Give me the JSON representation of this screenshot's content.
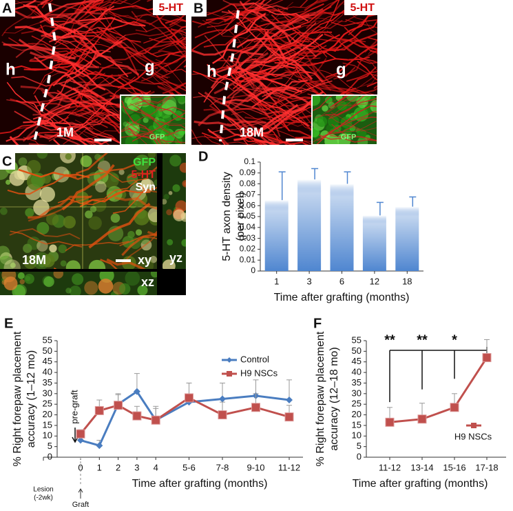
{
  "images": [
    {
      "label": "A",
      "stain": "5-HT",
      "regions": [
        "h",
        "g"
      ],
      "time": "1M",
      "inset": "GFP"
    },
    {
      "label": "B",
      "stain": "5-HT",
      "regions": [
        "h",
        "g"
      ],
      "time": "18M",
      "inset": "GFP"
    },
    {
      "label": "C",
      "stains": [
        "GFP",
        "5-HT",
        "Syn"
      ],
      "time": "18M",
      "views": [
        "xy",
        "yz",
        "xz"
      ]
    }
  ],
  "chart_data": [
    {
      "type": "bar",
      "label": "D",
      "ylabel": [
        "5-HT axon density",
        "(per pixel)"
      ],
      "xlabel": "Time after grafting (months)",
      "categories": [
        "1",
        "3",
        "6",
        "12",
        "18"
      ],
      "values": [
        0.065,
        0.084,
        0.08,
        0.051,
        0.059
      ],
      "errors": [
        0.026,
        0.01,
        0.011,
        0.012,
        0.009
      ],
      "color": "#4f86d0",
      "ylim": [
        0,
        0.1
      ],
      "yticks": [
        0,
        0.01,
        0.02,
        0.03,
        0.04,
        0.05,
        0.06,
        0.07,
        0.08,
        0.09,
        0.1
      ]
    },
    {
      "type": "line",
      "label": "E",
      "ylabel": [
        "% Right forepaw placement",
        "accuracy (1–12 mo)"
      ],
      "xlabel": "Time after grafting (months)",
      "categories": [
        "0",
        "1",
        "2",
        "3",
        "4",
        "5-6",
        "7-8",
        "9-10",
        "11-12"
      ],
      "series": [
        {
          "name": "Control",
          "color": "#4a7dc0",
          "marker": "diamond",
          "values": [
            8,
            5.5,
            25,
            31,
            17.5,
            26,
            27.5,
            29,
            27
          ],
          "errors": [
            null,
            2.5,
            5,
            8.5,
            6.5,
            9,
            7.5,
            7.5,
            9.5
          ]
        },
        {
          "name": "H9 NSCs",
          "color": "#c0504d",
          "marker": "square",
          "values": [
            11,
            22,
            24.5,
            19.5,
            17.5,
            28,
            20,
            23.5,
            19
          ],
          "errors": [
            2,
            5,
            5,
            4.5,
            5.5,
            7,
            6,
            6.5,
            5.5
          ]
        }
      ],
      "annotations": {
        "pre_graft": "pre-graft",
        "lesion": [
          "Lesion",
          "(-2wk)"
        ],
        "graft": "Graft"
      },
      "ylim": [
        0,
        55
      ],
      "yticks": [
        0,
        5,
        10,
        15,
        20,
        25,
        30,
        35,
        40,
        45,
        50,
        55
      ],
      "legend": "top-right"
    },
    {
      "type": "line",
      "label": "F",
      "ylabel": [
        "% Right forepaw placement",
        "accuracy (12–18 mo)"
      ],
      "xlabel": "Time after grafting (months)",
      "categories": [
        "11-12",
        "13-14",
        "15-16",
        "17-18"
      ],
      "series": [
        {
          "name": "H9 NSCs",
          "color": "#c0504d",
          "marker": "square",
          "values": [
            16.5,
            18,
            23.5,
            47
          ],
          "errors": [
            7,
            7.5,
            6.5,
            8.5
          ]
        }
      ],
      "significance": [
        "**",
        "**",
        "*"
      ],
      "ylim": [
        0,
        55
      ],
      "yticks": [
        0,
        5,
        10,
        15,
        20,
        25,
        30,
        35,
        40,
        45,
        50,
        55
      ],
      "legend": "bottom-right"
    }
  ]
}
